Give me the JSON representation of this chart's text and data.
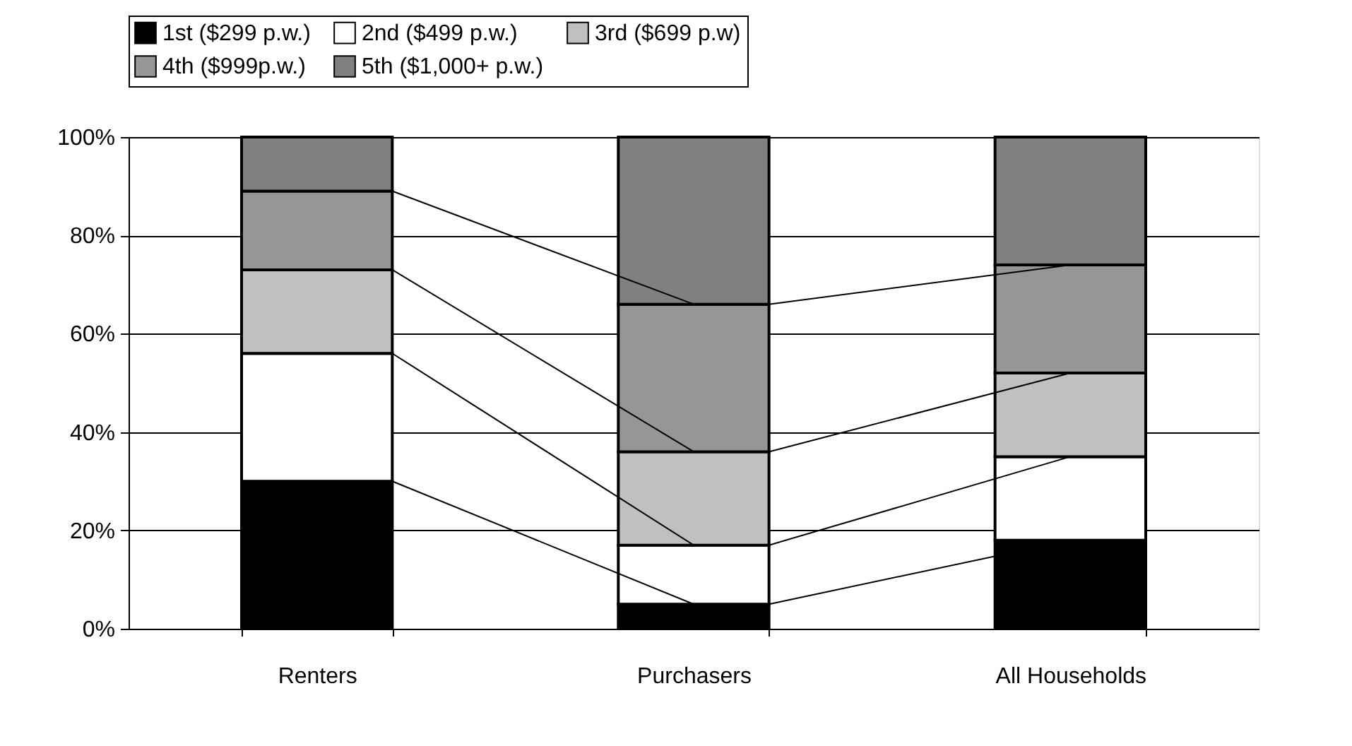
{
  "chart_data": {
    "type": "bar",
    "stacked": true,
    "categories": [
      "Renters",
      "Purchasers",
      "All Households"
    ],
    "series": [
      {
        "name": "1st ($299 p.w.)",
        "color": "#000000",
        "values": [
          30,
          5,
          18
        ]
      },
      {
        "name": "2nd ($499 p.w.)",
        "color": "#ffffff",
        "values": [
          26,
          12,
          17
        ]
      },
      {
        "name": "3rd ($699 p.w)",
        "color": "#c0c0c0",
        "values": [
          17,
          19,
          17
        ]
      },
      {
        "name": "4th ($999p.w.)",
        "color": "#969696",
        "values": [
          16,
          30,
          22
        ]
      },
      {
        "name": "5th ($1,000+ p.w.)",
        "color": "#808080",
        "values": [
          11,
          34,
          26
        ]
      }
    ],
    "ylim": [
      0,
      100
    ],
    "yticks": [
      {
        "value": 0,
        "label": "0%"
      },
      {
        "value": 20,
        "label": "20%"
      },
      {
        "value": 40,
        "label": "40%"
      },
      {
        "value": 60,
        "label": "60%"
      },
      {
        "value": 80,
        "label": "80%"
      },
      {
        "value": 100,
        "label": "100%"
      }
    ],
    "grid": "y",
    "legend": "top"
  }
}
